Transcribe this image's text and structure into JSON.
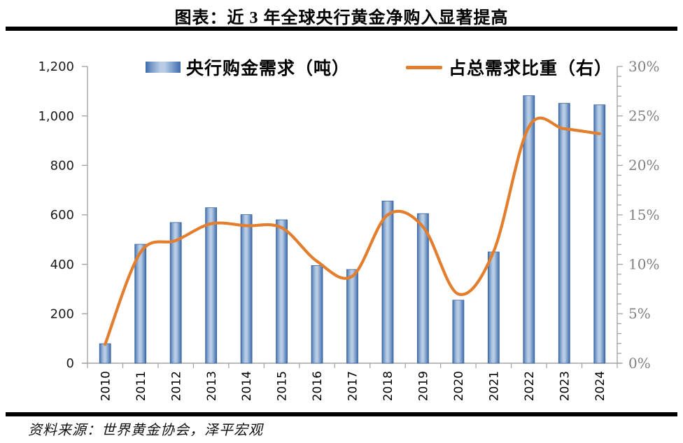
{
  "header": {
    "title": "图表：近 3 年全球央行黄金净购入显著提高"
  },
  "source": {
    "text": "资料来源：世界黄金协会，泽平宏观"
  },
  "legend": [
    {
      "label": "央行购金需求（吨）",
      "swatch": "bar-gradient-swatch"
    },
    {
      "label": "占总需求比重（右）",
      "swatch": "line-swatch"
    }
  ],
  "colors": {
    "bar_edge": "#3c6cab",
    "bar_mid": "#7b9cc8",
    "bar_center": "#b7cce5",
    "bar_stroke": "#39629f",
    "line": "#e27e2d",
    "axis": "#a6a6a6",
    "left_label": "#1a1a1a",
    "right_label": "#808080",
    "year_label": "#000000"
  },
  "chart_data": {
    "type": "bar",
    "title": "图表：近 3 年全球央行黄金净购入显著提高",
    "categories": [
      "2010",
      "2011",
      "2012",
      "2013",
      "2014",
      "2015",
      "2016",
      "2017",
      "2018",
      "2019",
      "2020",
      "2021",
      "2022",
      "2023",
      "2024"
    ],
    "series": [
      {
        "name": "央行购金需求（吨）",
        "type": "bar",
        "axis": "left",
        "values": [
          79,
          481,
          569,
          629,
          601,
          580,
          395,
          379,
          656,
          605,
          255,
          450,
          1082,
          1051,
          1045
        ]
      },
      {
        "name": "占总需求比重（右）",
        "type": "line",
        "axis": "right",
        "values": [
          1.9,
          11.2,
          12.4,
          14.1,
          13.9,
          13.7,
          10.3,
          8.8,
          15.0,
          13.8,
          7.0,
          11.3,
          23.9,
          23.7,
          23.2
        ]
      }
    ],
    "left_axis": {
      "min": 0,
      "max": 1200,
      "step": 200,
      "tick_labels": [
        "0",
        "200",
        "400",
        "600",
        "800",
        "1,000",
        "1,200"
      ]
    },
    "right_axis": {
      "min": 0,
      "max": 30,
      "step": 5,
      "minor_step": 1,
      "unit": "%",
      "tick_labels": [
        "0%",
        "5%",
        "10%",
        "15%",
        "20%",
        "25%",
        "30%"
      ]
    },
    "legend_position": "top",
    "grid": false,
    "xlabel": "",
    "ylabel": ""
  }
}
